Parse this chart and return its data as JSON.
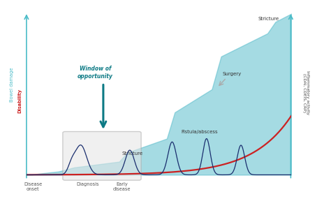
{
  "bg_color": "#ffffff",
  "teal_fill_color": "#4db8c8",
  "teal_fill_alpha": 0.5,
  "red_line_color": "#cc2222",
  "blue_wave_color": "#1a2e6e",
  "left_axis_color": "#4bbcc8",
  "right_axis_color": "#4bbcc8",
  "arrow_color": "#0d7a85",
  "title_left_teal": "Bowel damage",
  "title_left_red": "Disability",
  "title_right": "Inflammatory activity\n(CDAI, CDEIS, CRP)",
  "label_disease_onset": "Disease\nonset",
  "label_diagnosis": "Diagnosis",
  "label_early_disease": "Early\ndisease",
  "label_fistula": "Fistula/abscess",
  "label_surgery": "Surgery",
  "label_stricture_mid": "Stricture",
  "label_stricture_top": "Stricture",
  "label_window": "Window of\nopportunity",
  "xlim": [
    0,
    10
  ],
  "ylim": [
    -0.5,
    10
  ]
}
